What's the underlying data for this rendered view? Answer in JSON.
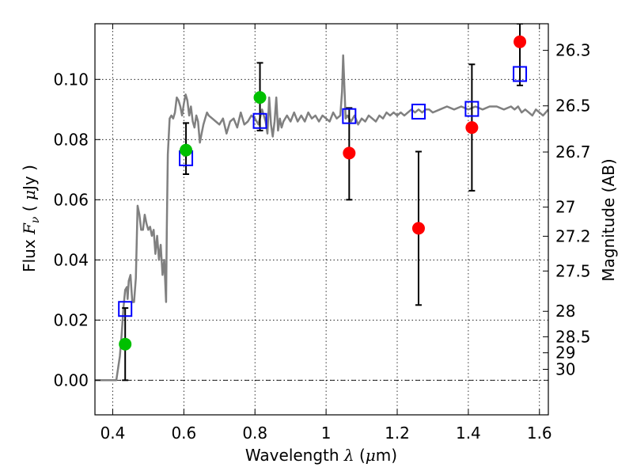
{
  "chart_data": {
    "type": "scatter",
    "title": "",
    "xlabel": {
      "prefix": "Wavelength  ",
      "symbol": "λ",
      "unit_open": " (",
      "unit_symbol": "μ",
      "unit_text": "m)"
    },
    "ylabel": {
      "prefix": "Flux  ",
      "symbol": "F",
      "subscript": "ν",
      "unit_open": "  ( ",
      "unit_symbol": "μ",
      "unit_text": "Jy )"
    },
    "y2label": "Magnitude (AB)",
    "xlim": [
      0.35,
      1.625
    ],
    "ylim": [
      -0.0115,
      0.1185
    ],
    "grid": true,
    "x_ticks": [
      {
        "value": 0.4,
        "label": "0.4"
      },
      {
        "value": 0.6,
        "label": "0.6"
      },
      {
        "value": 0.8,
        "label": "0.8"
      },
      {
        "value": 1.0,
        "label": "1"
      },
      {
        "value": 1.2,
        "label": "1.2"
      },
      {
        "value": 1.4,
        "label": "1.4"
      },
      {
        "value": 1.6,
        "label": "1.6"
      }
    ],
    "y_ticks": [
      {
        "value": 0.0,
        "label": "0.00"
      },
      {
        "value": 0.02,
        "label": "0.02"
      },
      {
        "value": 0.04,
        "label": "0.04"
      },
      {
        "value": 0.06,
        "label": "0.06"
      },
      {
        "value": 0.08,
        "label": "0.08"
      },
      {
        "value": 0.1,
        "label": "0.10"
      }
    ],
    "mag_ticks": [
      {
        "value": 26.3,
        "label": "26.3"
      },
      {
        "value": 26.5,
        "label": "26.5"
      },
      {
        "value": 26.7,
        "label": "26.7"
      },
      {
        "value": 27,
        "label": "27"
      },
      {
        "value": 27.2,
        "label": "27.2"
      },
      {
        "value": 27.5,
        "label": "27.5"
      },
      {
        "value": 28,
        "label": "28"
      },
      {
        "value": 28.5,
        "label": "28.5"
      },
      {
        "value": 29,
        "label": "29"
      },
      {
        "value": 30,
        "label": "30"
      }
    ],
    "zero_line": 0.0,
    "colors": {
      "spectrum": "#808080",
      "green_points": "#00c000",
      "red_points": "#ff0000",
      "model_boxes": "#0000ff",
      "error_bars": "#000000"
    },
    "spectrum": [
      [
        0.35,
        0.0
      ],
      [
        0.41,
        0.0
      ],
      [
        0.42,
        0.008
      ],
      [
        0.425,
        0.015
      ],
      [
        0.43,
        0.024
      ],
      [
        0.435,
        0.03
      ],
      [
        0.44,
        0.031
      ],
      [
        0.442,
        0.027
      ],
      [
        0.445,
        0.033
      ],
      [
        0.45,
        0.035
      ],
      [
        0.455,
        0.026
      ],
      [
        0.46,
        0.026
      ],
      [
        0.465,
        0.034
      ],
      [
        0.47,
        0.058
      ],
      [
        0.475,
        0.055
      ],
      [
        0.48,
        0.05
      ],
      [
        0.485,
        0.05
      ],
      [
        0.49,
        0.055
      ],
      [
        0.495,
        0.052
      ],
      [
        0.5,
        0.05
      ],
      [
        0.505,
        0.051
      ],
      [
        0.51,
        0.048
      ],
      [
        0.515,
        0.05
      ],
      [
        0.52,
        0.042
      ],
      [
        0.525,
        0.048
      ],
      [
        0.53,
        0.04
      ],
      [
        0.535,
        0.045
      ],
      [
        0.54,
        0.035
      ],
      [
        0.545,
        0.04
      ],
      [
        0.55,
        0.026
      ],
      [
        0.552,
        0.05
      ],
      [
        0.555,
        0.075
      ],
      [
        0.56,
        0.087
      ],
      [
        0.565,
        0.088
      ],
      [
        0.57,
        0.087
      ],
      [
        0.575,
        0.089
      ],
      [
        0.58,
        0.094
      ],
      [
        0.585,
        0.093
      ],
      [
        0.59,
        0.091
      ],
      [
        0.595,
        0.088
      ],
      [
        0.6,
        0.092
      ],
      [
        0.605,
        0.095
      ],
      [
        0.61,
        0.093
      ],
      [
        0.615,
        0.088
      ],
      [
        0.62,
        0.091
      ],
      [
        0.625,
        0.086
      ],
      [
        0.63,
        0.084
      ],
      [
        0.635,
        0.088
      ],
      [
        0.64,
        0.086
      ],
      [
        0.645,
        0.079
      ],
      [
        0.65,
        0.082
      ],
      [
        0.655,
        0.085
      ],
      [
        0.66,
        0.087
      ],
      [
        0.665,
        0.089
      ],
      [
        0.67,
        0.088
      ],
      [
        0.68,
        0.087
      ],
      [
        0.69,
        0.086
      ],
      [
        0.7,
        0.085
      ],
      [
        0.71,
        0.087
      ],
      [
        0.72,
        0.082
      ],
      [
        0.73,
        0.086
      ],
      [
        0.74,
        0.087
      ],
      [
        0.75,
        0.084
      ],
      [
        0.76,
        0.089
      ],
      [
        0.77,
        0.085
      ],
      [
        0.78,
        0.086
      ],
      [
        0.79,
        0.088
      ],
      [
        0.8,
        0.087
      ],
      [
        0.81,
        0.085
      ],
      [
        0.82,
        0.09
      ],
      [
        0.83,
        0.086
      ],
      [
        0.835,
        0.082
      ],
      [
        0.84,
        0.094
      ],
      [
        0.845,
        0.085
      ],
      [
        0.85,
        0.081
      ],
      [
        0.855,
        0.086
      ],
      [
        0.86,
        0.094
      ],
      [
        0.865,
        0.083
      ],
      [
        0.87,
        0.087
      ],
      [
        0.875,
        0.084
      ],
      [
        0.88,
        0.086
      ],
      [
        0.89,
        0.088
      ],
      [
        0.9,
        0.086
      ],
      [
        0.91,
        0.089
      ],
      [
        0.92,
        0.086
      ],
      [
        0.93,
        0.088
      ],
      [
        0.94,
        0.086
      ],
      [
        0.95,
        0.089
      ],
      [
        0.96,
        0.087
      ],
      [
        0.97,
        0.088
      ],
      [
        0.98,
        0.086
      ],
      [
        0.99,
        0.088
      ],
      [
        1.0,
        0.087
      ],
      [
        1.01,
        0.086
      ],
      [
        1.02,
        0.089
      ],
      [
        1.03,
        0.087
      ],
      [
        1.04,
        0.088
      ],
      [
        1.045,
        0.096
      ],
      [
        1.048,
        0.108
      ],
      [
        1.052,
        0.096
      ],
      [
        1.055,
        0.087
      ],
      [
        1.06,
        0.088
      ],
      [
        1.07,
        0.086
      ],
      [
        1.08,
        0.088
      ],
      [
        1.09,
        0.085
      ],
      [
        1.1,
        0.087
      ],
      [
        1.11,
        0.086
      ],
      [
        1.12,
        0.088
      ],
      [
        1.13,
        0.087
      ],
      [
        1.14,
        0.086
      ],
      [
        1.15,
        0.088
      ],
      [
        1.16,
        0.087
      ],
      [
        1.17,
        0.089
      ],
      [
        1.18,
        0.088
      ],
      [
        1.19,
        0.089
      ],
      [
        1.2,
        0.088
      ],
      [
        1.21,
        0.089
      ],
      [
        1.22,
        0.088
      ],
      [
        1.23,
        0.089
      ],
      [
        1.24,
        0.09
      ],
      [
        1.25,
        0.089
      ],
      [
        1.26,
        0.09
      ],
      [
        1.27,
        0.089
      ],
      [
        1.28,
        0.09
      ],
      [
        1.29,
        0.09
      ],
      [
        1.3,
        0.089
      ],
      [
        1.32,
        0.09
      ],
      [
        1.34,
        0.091
      ],
      [
        1.36,
        0.09
      ],
      [
        1.38,
        0.091
      ],
      [
        1.4,
        0.09
      ],
      [
        1.42,
        0.091
      ],
      [
        1.44,
        0.09
      ],
      [
        1.46,
        0.091
      ],
      [
        1.48,
        0.091
      ],
      [
        1.5,
        0.09
      ],
      [
        1.52,
        0.091
      ],
      [
        1.53,
        0.09
      ],
      [
        1.54,
        0.091
      ],
      [
        1.55,
        0.089
      ],
      [
        1.56,
        0.09
      ],
      [
        1.57,
        0.089
      ],
      [
        1.58,
        0.088
      ],
      [
        1.59,
        0.09
      ],
      [
        1.6,
        0.089
      ],
      [
        1.61,
        0.088
      ],
      [
        1.625,
        0.09
      ]
    ],
    "green_points": [
      {
        "x": 0.435,
        "y": 0.012,
        "err_low": 0.0,
        "err_high": 0.024
      },
      {
        "x": 0.606,
        "y": 0.0765,
        "err_low": 0.0685,
        "err_high": 0.0855
      },
      {
        "x": 0.814,
        "y": 0.094,
        "err_low": 0.083,
        "err_high": 0.1055
      }
    ],
    "red_points": [
      {
        "x": 1.065,
        "y": 0.0755,
        "err_low": 0.06,
        "err_high": 0.0905
      },
      {
        "x": 1.26,
        "y": 0.0505,
        "err_low": 0.025,
        "err_high": 0.076
      },
      {
        "x": 1.41,
        "y": 0.084,
        "err_low": 0.063,
        "err_high": 0.105
      },
      {
        "x": 1.545,
        "y": 0.1125,
        "err_low": 0.098,
        "err_high": 0.1185
      }
    ],
    "model_boxes": [
      {
        "x": 0.435,
        "y": 0.0237
      },
      {
        "x": 0.606,
        "y": 0.0738
      },
      {
        "x": 0.814,
        "y": 0.0862
      },
      {
        "x": 1.065,
        "y": 0.0878
      },
      {
        "x": 1.26,
        "y": 0.0893
      },
      {
        "x": 1.41,
        "y": 0.0902
      },
      {
        "x": 1.545,
        "y": 0.1018
      }
    ]
  }
}
